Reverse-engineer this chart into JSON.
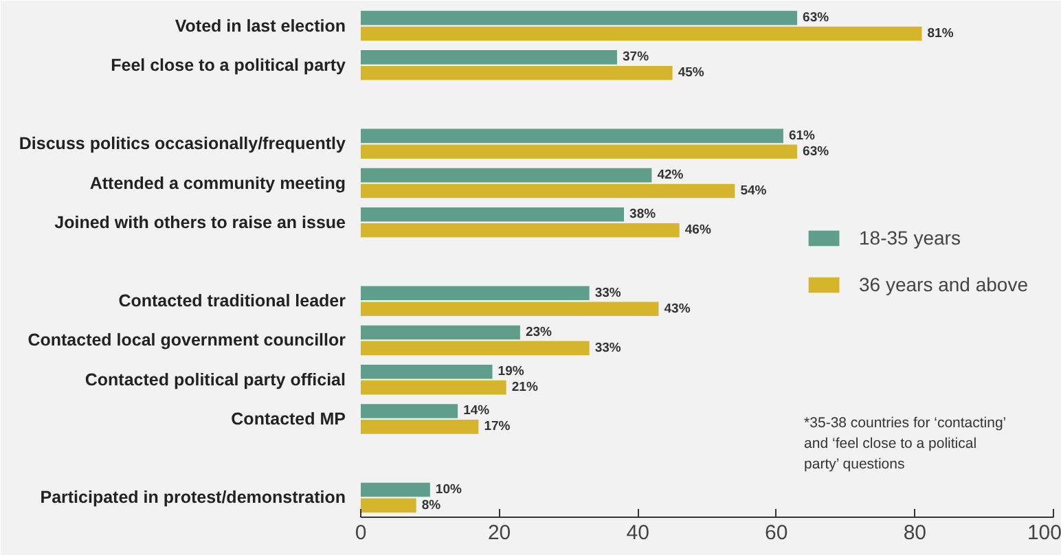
{
  "chart_data": {
    "type": "bar",
    "orientation": "horizontal",
    "categories": [
      "Voted in last election",
      "Feel close to a political party",
      null,
      "Discuss politics occasionally/frequently",
      "Attended a community meeting",
      "Joined with others to raise an issue",
      null,
      "Contacted traditional leader",
      "Contacted local government councillor",
      "Contacted political party official",
      "Contacted MP",
      null,
      "Participated in protest/demonstration"
    ],
    "series": [
      {
        "name": "18-35 years",
        "color": "#5f9e8b",
        "values": [
          63,
          37,
          null,
          61,
          42,
          38,
          null,
          33,
          23,
          19,
          14,
          null,
          10
        ],
        "value_labels": [
          "63%",
          "37%",
          null,
          "61%",
          "42%",
          "38%",
          null,
          "33%",
          "23%",
          "19%",
          "14%",
          null,
          "10%"
        ]
      },
      {
        "name": "36 years and above",
        "color": "#d4b52c",
        "values": [
          81,
          45,
          null,
          63,
          54,
          46,
          null,
          43,
          33,
          21,
          17,
          null,
          8
        ],
        "value_labels": [
          "81%",
          "45%",
          null,
          "63%",
          "54%",
          "46%",
          null,
          "43%",
          "33%",
          "21%",
          "17%",
          null,
          "8%"
        ]
      }
    ],
    "xlim": [
      0,
      100
    ],
    "xticks": [
      0,
      20,
      40,
      60,
      80,
      100
    ],
    "grid": false,
    "legend": "right",
    "annotations": [
      "*35-38 countries for ‘contacting’ and ‘feel close to a political party’ questions"
    ]
  }
}
